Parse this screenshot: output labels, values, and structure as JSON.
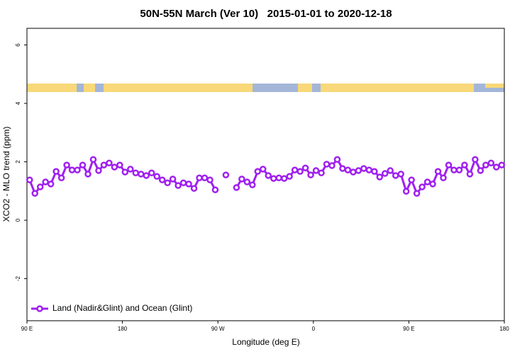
{
  "chart_data": {
    "type": "line",
    "title": "50N-55N March (Ver 10)   2015-01-01 to 2020-12-18",
    "x_label": "Longitude (deg E)",
    "y_label": "XCO2 - MLO trend (ppm)",
    "xlim": [
      90,
      540
    ],
    "ylim": [
      -3.44,
      6.57
    ],
    "xticks": [
      {
        "value": 90,
        "label": "90 E"
      },
      180,
      {
        "value": 270,
        "label": "90 W"
      },
      {
        "value": 360,
        "label": "0"
      },
      {
        "value": 450,
        "label": "90 E"
      },
      {
        "value": 540,
        "label": "180"
      }
    ],
    "yticks": [
      -2,
      0,
      2,
      4,
      6
    ],
    "legend": "bottom-left",
    "x": [
      92.5,
      97.5,
      102.5,
      107.5,
      112.5,
      117.5,
      122.5,
      127.5,
      132.5,
      137.5,
      142.5,
      147.5,
      152.5,
      157.5,
      162.5,
      167.5,
      172.5,
      177.5,
      182.5,
      187.5,
      192.5,
      197.5,
      202.5,
      207.5,
      212.5,
      217.5,
      222.5,
      227.5,
      232.5,
      237.5,
      242.5,
      247.5,
      252.5,
      257.5,
      262.5,
      267.5,
      272.5,
      277.5,
      282.5,
      287.5,
      292.5,
      297.5,
      302.5,
      307.5,
      312.5,
      317.5,
      322.5,
      327.5,
      332.5,
      337.5,
      342.5,
      347.5,
      352.5,
      357.5,
      362.5,
      367.5,
      372.5,
      377.5,
      382.5,
      387.5,
      392.5,
      397.5,
      402.5,
      407.5,
      412.5,
      417.5,
      422.5,
      427.5,
      432.5,
      437.5,
      442.5,
      447.5,
      452.5,
      457.5,
      462.5,
      467.5,
      472.5,
      477.5,
      482.5,
      487.5,
      492.5,
      497.5,
      502.5,
      507.5,
      512.5,
      517.5,
      522.5,
      527.5,
      532.5,
      537.5
    ],
    "series": [
      {
        "name": "Land (Nadir&Glint) and Ocean (Glint)",
        "color": "#a020f0",
        "values": [
          1.38,
          0.92,
          1.14,
          1.31,
          1.24,
          1.67,
          1.45,
          1.89,
          1.72,
          1.72,
          1.89,
          1.58,
          2.08,
          1.7,
          1.89,
          1.96,
          1.82,
          1.89,
          1.65,
          1.75,
          1.62,
          1.58,
          1.53,
          1.62,
          1.5,
          1.38,
          1.28,
          1.41,
          1.19,
          1.28,
          1.24,
          1.09,
          1.45,
          1.45,
          1.38,
          1.04,
          null,
          1.55,
          null,
          1.12,
          1.41,
          1.31,
          1.21,
          1.67,
          1.75,
          1.53,
          1.43,
          1.45,
          1.43,
          1.5,
          1.72,
          1.67,
          1.79,
          1.55,
          1.7,
          1.62,
          1.92,
          1.87,
          2.08,
          1.77,
          1.72,
          1.65,
          1.7,
          1.77,
          1.72,
          1.67,
          1.48,
          1.6,
          1.7,
          1.53,
          1.58,
          0.99,
          1.38,
          0.92,
          1.14,
          1.31,
          1.24,
          1.67,
          1.45,
          1.89,
          1.72,
          1.72,
          1.89,
          1.58,
          2.08,
          1.7,
          1.89,
          1.96,
          1.82,
          1.89
        ]
      }
    ]
  }
}
